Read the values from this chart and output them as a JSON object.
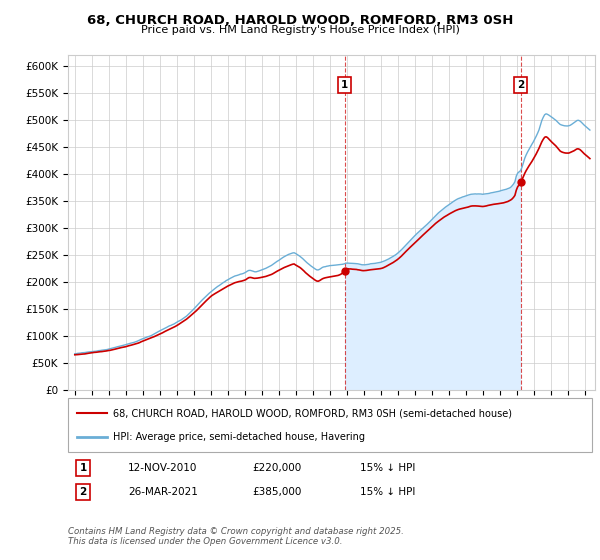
{
  "title": "68, CHURCH ROAD, HAROLD WOOD, ROMFORD, RM3 0SH",
  "subtitle": "Price paid vs. HM Land Registry's House Price Index (HPI)",
  "ylabel_ticks": [
    "£0",
    "£50K",
    "£100K",
    "£150K",
    "£200K",
    "£250K",
    "£300K",
    "£350K",
    "£400K",
    "£450K",
    "£500K",
    "£550K",
    "£600K"
  ],
  "ylim": [
    0,
    620000
  ],
  "hpi_color": "#6aaed6",
  "hpi_fill_color": "#ddeeff",
  "price_color": "#cc0000",
  "marker1_date": 2010.87,
  "marker2_date": 2021.23,
  "annotation1": [
    "1",
    "12-NOV-2010",
    "£220,000",
    "15% ↓ HPI"
  ],
  "annotation2": [
    "2",
    "26-MAR-2021",
    "£385,000",
    "15% ↓ HPI"
  ],
  "legend1": "68, CHURCH ROAD, HAROLD WOOD, ROMFORD, RM3 0SH (semi-detached house)",
  "legend2": "HPI: Average price, semi-detached house, Havering",
  "footnote": "Contains HM Land Registry data © Crown copyright and database right 2025.\nThis data is licensed under the Open Government Licence v3.0.",
  "grid_color": "#cccccc",
  "bg_color": "#ffffff",
  "plot_bg": "#ffffff"
}
